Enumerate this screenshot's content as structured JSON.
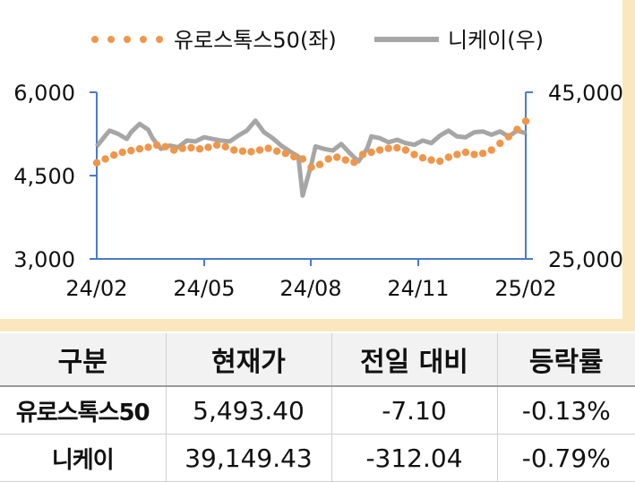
{
  "chart_data": {
    "type": "line",
    "legend": {
      "placement": "top",
      "entries": [
        "유로스톡스50(좌)",
        "니케이(우)"
      ]
    },
    "x_ticks": [
      "24/02",
      "24/05",
      "24/08",
      "24/11",
      "25/02"
    ],
    "left_axis": {
      "ticks": [
        "6,000",
        "4,500",
        "3,000"
      ],
      "range": [
        3000,
        6000
      ]
    },
    "right_axis": {
      "ticks": [
        "45,000",
        "25,000"
      ],
      "range": [
        25000,
        45000
      ]
    },
    "grid": false,
    "series": [
      {
        "name": "유로스톡스50(좌)",
        "axis": "left",
        "color": "#f0964a",
        "style": "dotted",
        "x": [
          0,
          0.02,
          0.04,
          0.06,
          0.08,
          0.1,
          0.12,
          0.14,
          0.16,
          0.18,
          0.2,
          0.22,
          0.24,
          0.26,
          0.28,
          0.3,
          0.32,
          0.34,
          0.36,
          0.38,
          0.4,
          0.42,
          0.44,
          0.46,
          0.48,
          0.5,
          0.52,
          0.54,
          0.56,
          0.58,
          0.6,
          0.62,
          0.64,
          0.66,
          0.68,
          0.7,
          0.72,
          0.74,
          0.76,
          0.78,
          0.8,
          0.82,
          0.84,
          0.86,
          0.88,
          0.9,
          0.92,
          0.94,
          0.96,
          0.98,
          1.0
        ],
        "y": [
          4730,
          4800,
          4870,
          4920,
          4950,
          4980,
          5010,
          5050,
          5020,
          4960,
          4990,
          5000,
          4980,
          5010,
          5050,
          5020,
          4960,
          4940,
          4930,
          4960,
          4990,
          4940,
          4900,
          4840,
          4800,
          4650,
          4700,
          4800,
          4830,
          4780,
          4740,
          4880,
          4920,
          4960,
          4990,
          5000,
          4960,
          4880,
          4820,
          4780,
          4760,
          4830,
          4880,
          4920,
          4880,
          4900,
          4960,
          5080,
          5200,
          5330,
          5480
        ]
      },
      {
        "name": "니케이(우)",
        "axis": "right",
        "color": "#a6a6a6",
        "style": "solid",
        "x": [
          0,
          0.02,
          0.03,
          0.05,
          0.07,
          0.08,
          0.1,
          0.12,
          0.13,
          0.15,
          0.17,
          0.19,
          0.21,
          0.23,
          0.25,
          0.27,
          0.29,
          0.31,
          0.33,
          0.35,
          0.37,
          0.39,
          0.41,
          0.43,
          0.45,
          0.47,
          0.48,
          0.5,
          0.51,
          0.53,
          0.55,
          0.57,
          0.59,
          0.61,
          0.63,
          0.64,
          0.66,
          0.68,
          0.7,
          0.72,
          0.74,
          0.76,
          0.78,
          0.8,
          0.82,
          0.84,
          0.86,
          0.88,
          0.9,
          0.92,
          0.94,
          0.96,
          0.98,
          1.0
        ],
        "y": [
          38500,
          39800,
          40400,
          40000,
          39400,
          40200,
          41200,
          40500,
          39500,
          38200,
          38600,
          38400,
          39200,
          39100,
          39600,
          39400,
          39200,
          39100,
          39800,
          40400,
          41600,
          40200,
          39500,
          38600,
          37900,
          37300,
          32600,
          36300,
          38500,
          38200,
          38000,
          38800,
          37700,
          36700,
          38200,
          39700,
          39500,
          39000,
          39300,
          38900,
          38700,
          39200,
          38900,
          39800,
          40400,
          39700,
          39600,
          40200,
          40300,
          39900,
          40300,
          39700,
          40400,
          40100
        ]
      }
    ]
  },
  "table": {
    "headers": [
      "구분",
      "현재가",
      "전일 대비",
      "등락률"
    ],
    "rows": [
      [
        "유로스톡스50",
        "5,493.40",
        "-7.10",
        "-0.13%"
      ],
      [
        "니케이",
        "39,149.43",
        "-312.04",
        "-0.79%"
      ]
    ]
  }
}
